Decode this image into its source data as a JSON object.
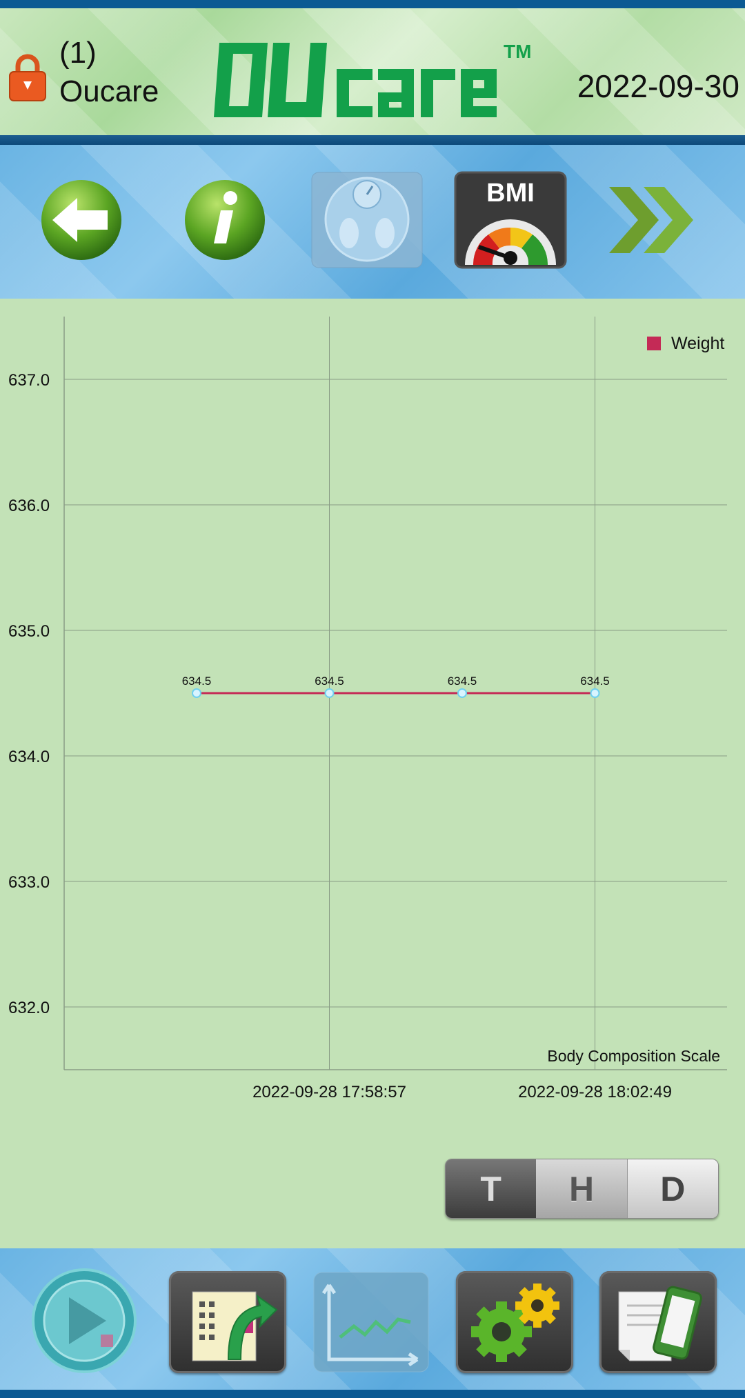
{
  "header": {
    "user_index": "(1)",
    "user_name": "Oucare",
    "date": "2022-09-30",
    "brand": "OUcare"
  },
  "toolbar": {
    "buttons": [
      {
        "name": "back-button",
        "icon": "arrow-left-icon"
      },
      {
        "name": "info-button",
        "icon": "info-icon"
      },
      {
        "name": "scale-button",
        "icon": "scale-icon"
      },
      {
        "name": "bmi-button",
        "icon": "bmi-gauge-icon",
        "label": "BMI"
      },
      {
        "name": "forward-button",
        "icon": "double-chevron-right-icon"
      }
    ]
  },
  "chart_data": {
    "type": "line",
    "y_ticks": [
      "637.0",
      "636.0",
      "635.0",
      "634.0",
      "633.0",
      "632.0"
    ],
    "ylim": [
      631.5,
      637.5
    ],
    "x_tick_labels": [
      "2022-09-28 17:58:57",
      "2022-09-28 18:02:49"
    ],
    "series": [
      {
        "name": "Weight",
        "color": "#c42a56",
        "values": [
          634.5,
          634.5,
          634.5,
          634.5
        ],
        "labels": [
          "634.5",
          "634.5",
          "634.5",
          "634.5"
        ]
      }
    ],
    "legend_position": "top-right",
    "annotation": "Body Composition Scale",
    "grid": true
  },
  "range_selector": {
    "options": [
      "T",
      "H",
      "D"
    ],
    "selected": "H"
  },
  "bottombar": {
    "buttons": [
      {
        "name": "play-button",
        "icon": "play-icon"
      },
      {
        "name": "export-button",
        "icon": "export-icon"
      },
      {
        "name": "chart-button",
        "icon": "line-chart-icon"
      },
      {
        "name": "settings-button",
        "icon": "gears-icon"
      },
      {
        "name": "device-button",
        "icon": "phone-document-icon"
      }
    ]
  }
}
